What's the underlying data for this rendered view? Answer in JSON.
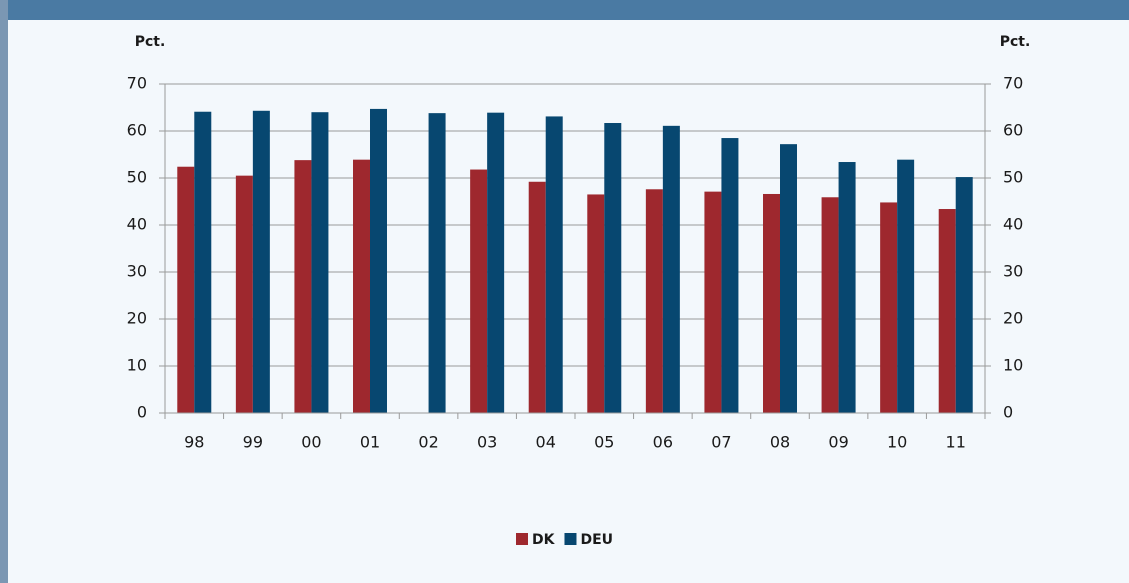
{
  "chart_data": {
    "type": "bar",
    "ylabel": "Pct.",
    "y2label": "Pct.",
    "categories": [
      "98",
      "99",
      "00",
      "01",
      "02",
      "03",
      "04",
      "05",
      "06",
      "07",
      "08",
      "09",
      "10",
      "11"
    ],
    "series": [
      {
        "name": "DK",
        "color": "#9e282e",
        "values": [
          52.4,
          50.5,
          53.8,
          53.9,
          null,
          51.8,
          49.2,
          46.5,
          47.6,
          47.1,
          46.6,
          45.9,
          44.8,
          43.4
        ]
      },
      {
        "name": "DEU",
        "color": "#074770",
        "values": [
          64.1,
          64.3,
          64.0,
          64.7,
          63.8,
          63.9,
          63.1,
          61.7,
          61.1,
          58.5,
          57.2,
          53.4,
          53.9,
          50.2
        ]
      }
    ],
    "ylim": [
      0,
      70
    ],
    "yticks": [
      0,
      10,
      20,
      30,
      40,
      50,
      60,
      70
    ],
    "y2lim": [
      0,
      70
    ],
    "y2ticks": [
      0,
      10,
      20,
      30,
      40,
      50,
      60,
      70
    ],
    "grid": true,
    "legend": "bottom"
  }
}
